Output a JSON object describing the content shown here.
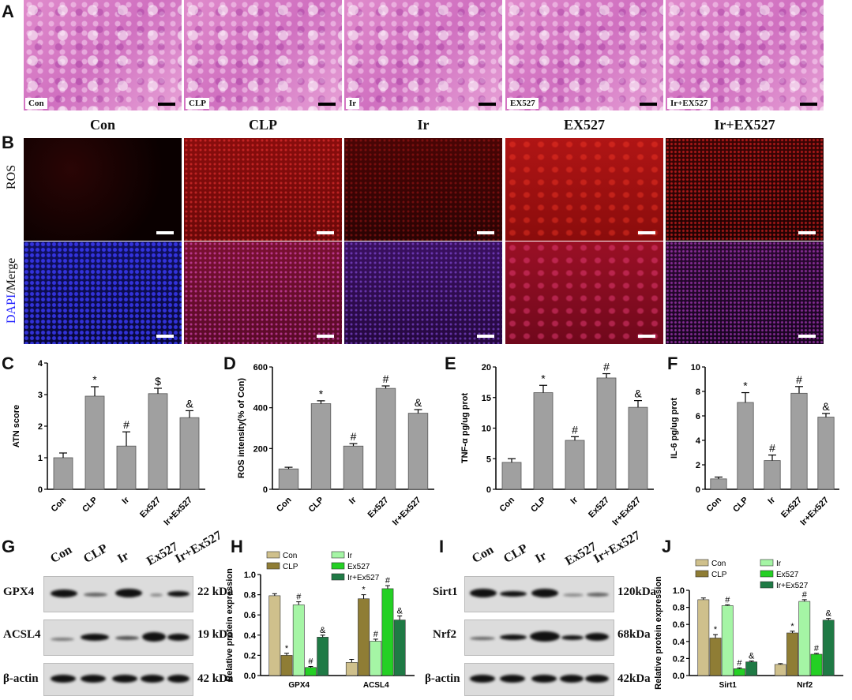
{
  "panels": {
    "A": "A",
    "B": "B",
    "C": "C",
    "D": "D",
    "E": "E",
    "F": "F",
    "G": "G",
    "H": "H",
    "I": "I",
    "J": "J"
  },
  "he_labels": [
    "Con",
    "CLP",
    "Ir",
    "EX527",
    "Ir+EX527"
  ],
  "fluor": {
    "columns": [
      "Con",
      "CLP",
      "Ir",
      "EX527",
      "Ir+EX527"
    ],
    "row_ros": "ROS",
    "row_merge_dapi": "DAPI",
    "row_merge_rest": "/Merge"
  },
  "colors": {
    "bar_gray": "#a0a0a0",
    "con": "#cfc08c",
    "clp": "#8f7d35",
    "ir": "#a5f5a5",
    "ex527": "#24d024",
    "irex": "#1f7a45",
    "ros_red": "#c01010",
    "dapi_blue": "#2222ff"
  },
  "chart_data": [
    {
      "type": "bar",
      "panel": "C",
      "ylabel": "ATN score",
      "ylim": [
        0,
        4
      ],
      "yticks": [
        "0",
        "1",
        "2",
        "3",
        "4"
      ],
      "categories": [
        "Con",
        "CLP",
        "Ir",
        "Ex527",
        "Ir+Ex527"
      ],
      "values": [
        1.0,
        2.95,
        1.37,
        3.03,
        2.27
      ],
      "errors": [
        0.15,
        0.3,
        0.45,
        0.17,
        0.22
      ],
      "marks": [
        "",
        "*",
        "#",
        "$",
        "&"
      ]
    },
    {
      "type": "bar",
      "panel": "D",
      "ylabel": "ROS intensity(% of Con)",
      "ylim": [
        0,
        600
      ],
      "yticks": [
        "0",
        "200",
        "400",
        "600"
      ],
      "categories": [
        "Con",
        "CLP",
        "Ir",
        "Ex527",
        "Ir+Ex527"
      ],
      "values": [
        100,
        420,
        212,
        495,
        373
      ],
      "errors": [
        8,
        14,
        12,
        12,
        18
      ],
      "marks": [
        "",
        "*",
        "#",
        "#",
        "&"
      ]
    },
    {
      "type": "bar",
      "panel": "E",
      "ylabel": "TNF-α pg/ug prot",
      "ylim": [
        0,
        20
      ],
      "yticks": [
        "0",
        "5",
        "10",
        "15",
        "20"
      ],
      "categories": [
        "Con",
        "CLP",
        "Ir",
        "Ex527",
        "Ir+Ex527"
      ],
      "values": [
        4.4,
        15.8,
        8.0,
        18.2,
        13.4
      ],
      "errors": [
        0.6,
        1.2,
        0.6,
        0.7,
        1.1
      ],
      "marks": [
        "",
        "*",
        "#",
        "#",
        "&"
      ]
    },
    {
      "type": "bar",
      "panel": "F",
      "ylabel": "IL-6 pg/ug prot",
      "ylim": [
        0,
        10
      ],
      "yticks": [
        "0",
        "2",
        "4",
        "6",
        "8",
        "10"
      ],
      "categories": [
        "Con",
        "CLP",
        "Ir",
        "Ex527",
        "Ir+Ex527"
      ],
      "values": [
        0.85,
        7.1,
        2.35,
        7.85,
        5.9
      ],
      "errors": [
        0.15,
        0.8,
        0.45,
        0.55,
        0.3
      ],
      "marks": [
        "",
        "*",
        "#",
        "#",
        "&"
      ]
    },
    {
      "type": "bar",
      "panel": "H",
      "ylabel": "Relative protein expression",
      "ylim": [
        0,
        1.0
      ],
      "yticks": [
        "0.0",
        "0.2",
        "0.4",
        "0.6",
        "0.8",
        "1.0"
      ],
      "categories": [
        "GPX4",
        "ACSL4"
      ],
      "series": [
        {
          "name": "Con",
          "values": [
            0.79,
            0.13
          ],
          "errors": [
            0.02,
            0.03
          ],
          "marks": [
            "",
            ""
          ]
        },
        {
          "name": "CLP",
          "values": [
            0.2,
            0.76
          ],
          "errors": [
            0.02,
            0.04
          ],
          "marks": [
            "*",
            "*"
          ]
        },
        {
          "name": "Ir",
          "values": [
            0.7,
            0.34
          ],
          "errors": [
            0.03,
            0.02
          ],
          "marks": [
            "#",
            "#"
          ]
        },
        {
          "name": "Ex527",
          "values": [
            0.08,
            0.86
          ],
          "errors": [
            0.01,
            0.03
          ],
          "marks": [
            "#",
            "#"
          ]
        },
        {
          "name": "Ir+Ex527",
          "values": [
            0.38,
            0.55
          ],
          "errors": [
            0.02,
            0.04
          ],
          "marks": [
            "&",
            "&"
          ]
        }
      ]
    },
    {
      "type": "bar",
      "panel": "J",
      "ylabel": "Relative protein expression",
      "ylim": [
        0,
        1.0
      ],
      "yticks": [
        "0.0",
        "0.2",
        "0.4",
        "0.6",
        "0.8",
        "1.0"
      ],
      "categories": [
        "Sirt1",
        "Nrf2"
      ],
      "series": [
        {
          "name": "Con",
          "values": [
            0.89,
            0.13
          ],
          "errors": [
            0.02,
            0.01
          ],
          "marks": [
            "",
            ""
          ]
        },
        {
          "name": "CLP",
          "values": [
            0.44,
            0.5
          ],
          "errors": [
            0.04,
            0.02
          ],
          "marks": [
            "*",
            "*"
          ]
        },
        {
          "name": "Ir",
          "values": [
            0.82,
            0.87
          ],
          "errors": [
            0.01,
            0.02
          ],
          "marks": [
            "#",
            "#"
          ]
        },
        {
          "name": "Ex527",
          "values": [
            0.08,
            0.25
          ],
          "errors": [
            0.01,
            0.01
          ],
          "marks": [
            "#",
            "#"
          ]
        },
        {
          "name": "Ir+Ex527",
          "values": [
            0.16,
            0.65
          ],
          "errors": [
            0.01,
            0.02
          ],
          "marks": [
            "&",
            "&"
          ]
        }
      ]
    }
  ],
  "blots": {
    "G": {
      "lanes": [
        "Con",
        "CLP",
        "Ir",
        "Ex527",
        "Ir+Ex527"
      ],
      "rows": [
        {
          "protein": "GPX4",
          "size": "22 kDa"
        },
        {
          "protein": "ACSL4",
          "size": "19 kDa"
        },
        {
          "protein": "β-actin",
          "size": "42 kDa"
        }
      ]
    },
    "I": {
      "lanes": [
        "Con",
        "CLP",
        "Ir",
        "Ex527",
        "Ir+Ex527"
      ],
      "rows": [
        {
          "protein": "Sirt1",
          "size": "120kDa"
        },
        {
          "protein": "Nrf2",
          "size": "68kDa"
        },
        {
          "protein": "β-actin",
          "size": "42kDa"
        }
      ]
    }
  }
}
